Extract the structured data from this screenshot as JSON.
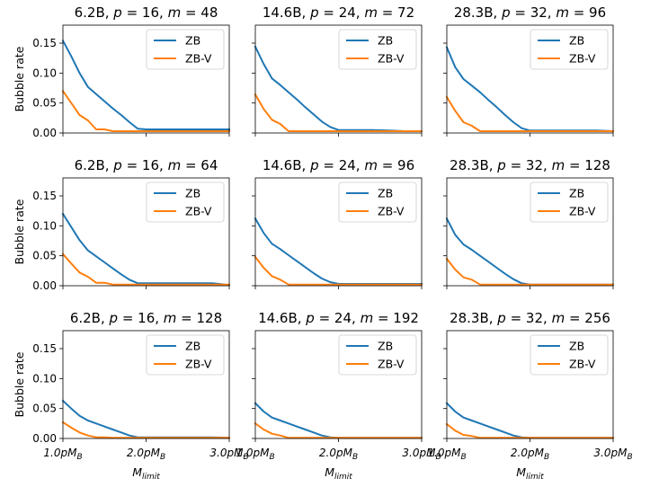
{
  "figure": {
    "ylabel": "Bubble rate",
    "xlabel_main": "M",
    "xlabel_sub": "limit",
    "xtick_labels": [
      {
        "main": "1.0pM",
        "sub": "B"
      },
      {
        "main": "2.0pM",
        "sub": "B"
      },
      {
        "main": "3.0pM",
        "sub": "B"
      }
    ],
    "ytick_labels": [
      "0.00",
      "0.05",
      "0.10",
      "0.15"
    ]
  },
  "colors": {
    "ZB": "#1f77b4",
    "ZB-V": "#ff7f0e"
  },
  "chart_data": [
    {
      "type": "line",
      "title": "6.2B, p = 16, m = 48",
      "title_parts": {
        "size": "6.2B",
        "p": "16",
        "m": "48"
      },
      "x": [
        1.0,
        1.1,
        1.2,
        1.3,
        1.4,
        1.5,
        1.6,
        1.7,
        1.8,
        1.9,
        2.0,
        2.2,
        2.4,
        2.6,
        2.8,
        3.0
      ],
      "xlim": [
        1.0,
        3.0
      ],
      "ylim": [
        0.0,
        0.18
      ],
      "legend": "upper right",
      "series": [
        {
          "name": "ZB",
          "values": [
            0.154,
            0.128,
            0.1,
            0.077,
            0.065,
            0.053,
            0.041,
            0.03,
            0.018,
            0.007,
            0.006,
            0.006,
            0.006,
            0.006,
            0.006,
            0.006
          ]
        },
        {
          "name": "ZB-V",
          "values": [
            0.07,
            0.05,
            0.03,
            0.021,
            0.006,
            0.006,
            0.003,
            0.003,
            0.003,
            0.003,
            0.003,
            0.003,
            0.003,
            0.003,
            0.003,
            0.003
          ]
        }
      ]
    },
    {
      "type": "line",
      "title": "14.6B, p = 24, m = 72",
      "title_parts": {
        "size": "14.6B",
        "p": "24",
        "m": "72"
      },
      "x": [
        1.0,
        1.1,
        1.2,
        1.3,
        1.4,
        1.5,
        1.6,
        1.7,
        1.8,
        1.9,
        2.0,
        2.2,
        2.4,
        2.6,
        2.8,
        3.0
      ],
      "xlim": [
        1.0,
        3.0
      ],
      "ylim": [
        0.0,
        0.18
      ],
      "legend": "upper right",
      "series": [
        {
          "name": "ZB",
          "values": [
            0.144,
            0.115,
            0.091,
            0.08,
            0.068,
            0.056,
            0.043,
            0.031,
            0.019,
            0.01,
            0.005,
            0.005,
            0.005,
            0.004,
            0.003,
            0.003
          ]
        },
        {
          "name": "ZB-V",
          "values": [
            0.064,
            0.04,
            0.022,
            0.015,
            0.003,
            0.003,
            0.003,
            0.003,
            0.003,
            0.003,
            0.003,
            0.003,
            0.003,
            0.003,
            0.003,
            0.003
          ]
        }
      ]
    },
    {
      "type": "line",
      "title": "28.3B, p = 32, m = 96",
      "title_parts": {
        "size": "28.3B",
        "p": "32",
        "m": "96"
      },
      "x": [
        1.0,
        1.1,
        1.2,
        1.3,
        1.4,
        1.5,
        1.6,
        1.7,
        1.8,
        1.9,
        2.0,
        2.2,
        2.4,
        2.6,
        2.8,
        3.0
      ],
      "xlim": [
        1.0,
        3.0
      ],
      "ylim": [
        0.0,
        0.18
      ],
      "legend": "upper right",
      "series": [
        {
          "name": "ZB",
          "values": [
            0.143,
            0.11,
            0.09,
            0.079,
            0.068,
            0.055,
            0.043,
            0.03,
            0.018,
            0.008,
            0.004,
            0.004,
            0.004,
            0.004,
            0.004,
            0.003
          ]
        },
        {
          "name": "ZB-V",
          "values": [
            0.06,
            0.037,
            0.018,
            0.012,
            0.003,
            0.003,
            0.003,
            0.003,
            0.003,
            0.003,
            0.003,
            0.003,
            0.003,
            0.003,
            0.003,
            0.003
          ]
        }
      ]
    },
    {
      "type": "line",
      "title": "6.2B, p = 16, m = 64",
      "title_parts": {
        "size": "6.2B",
        "p": "16",
        "m": "64"
      },
      "x": [
        1.0,
        1.1,
        1.2,
        1.3,
        1.4,
        1.5,
        1.6,
        1.7,
        1.8,
        1.9,
        2.0,
        2.2,
        2.4,
        2.6,
        2.8,
        3.0
      ],
      "xlim": [
        1.0,
        3.0
      ],
      "ylim": [
        0.0,
        0.18
      ],
      "legend": "upper right",
      "series": [
        {
          "name": "ZB",
          "values": [
            0.12,
            0.098,
            0.076,
            0.059,
            0.049,
            0.039,
            0.029,
            0.019,
            0.01,
            0.004,
            0.004,
            0.004,
            0.004,
            0.004,
            0.004,
            0.001
          ]
        },
        {
          "name": "ZB-V",
          "values": [
            0.053,
            0.037,
            0.022,
            0.015,
            0.005,
            0.005,
            0.002,
            0.002,
            0.002,
            0.002,
            0.002,
            0.002,
            0.002,
            0.002,
            0.002,
            0.002
          ]
        }
      ]
    },
    {
      "type": "line",
      "title": "14.6B, p = 24, m = 96",
      "title_parts": {
        "size": "14.6B",
        "p": "24",
        "m": "96"
      },
      "x": [
        1.0,
        1.1,
        1.2,
        1.3,
        1.4,
        1.5,
        1.6,
        1.7,
        1.8,
        1.9,
        2.0,
        2.2,
        2.4,
        2.6,
        2.8,
        3.0
      ],
      "xlim": [
        1.0,
        3.0
      ],
      "ylim": [
        0.0,
        0.18
      ],
      "legend": "upper right",
      "series": [
        {
          "name": "ZB",
          "values": [
            0.112,
            0.088,
            0.07,
            0.061,
            0.051,
            0.041,
            0.031,
            0.021,
            0.012,
            0.006,
            0.003,
            0.003,
            0.003,
            0.003,
            0.003,
            0.003
          ]
        },
        {
          "name": "ZB-V",
          "values": [
            0.048,
            0.03,
            0.016,
            0.01,
            0.002,
            0.002,
            0.002,
            0.002,
            0.002,
            0.002,
            0.002,
            0.002,
            0.002,
            0.002,
            0.002,
            0.002
          ]
        }
      ]
    },
    {
      "type": "line",
      "title": "28.3B, p = 32, m = 128",
      "title_parts": {
        "size": "28.3B",
        "p": "32",
        "m": "128"
      },
      "x": [
        1.0,
        1.1,
        1.2,
        1.3,
        1.4,
        1.5,
        1.6,
        1.7,
        1.8,
        1.9,
        2.0,
        2.2,
        2.4,
        2.6,
        2.8,
        3.0
      ],
      "xlim": [
        1.0,
        3.0
      ],
      "ylim": [
        0.0,
        0.18
      ],
      "legend": "upper right",
      "series": [
        {
          "name": "ZB",
          "values": [
            0.112,
            0.085,
            0.069,
            0.06,
            0.05,
            0.04,
            0.03,
            0.02,
            0.011,
            0.004,
            0.002,
            0.002,
            0.002,
            0.002,
            0.002,
            0.002
          ]
        },
        {
          "name": "ZB-V",
          "values": [
            0.045,
            0.027,
            0.014,
            0.01,
            0.002,
            0.002,
            0.002,
            0.002,
            0.002,
            0.002,
            0.002,
            0.002,
            0.002,
            0.002,
            0.002,
            0.002
          ]
        }
      ]
    },
    {
      "type": "line",
      "title": "6.2B, p = 16, m = 128",
      "title_parts": {
        "size": "6.2B",
        "p": "16",
        "m": "128"
      },
      "x": [
        1.0,
        1.1,
        1.2,
        1.3,
        1.4,
        1.5,
        1.6,
        1.7,
        1.8,
        1.9,
        2.0,
        2.2,
        2.4,
        2.6,
        2.8,
        3.0
      ],
      "xlim": [
        1.0,
        3.0
      ],
      "ylim": [
        0.0,
        0.18
      ],
      "legend": "upper right",
      "series": [
        {
          "name": "ZB",
          "values": [
            0.063,
            0.05,
            0.038,
            0.03,
            0.025,
            0.02,
            0.015,
            0.01,
            0.005,
            0.002,
            0.002,
            0.002,
            0.002,
            0.002,
            0.002,
            0.001
          ]
        },
        {
          "name": "ZB-V",
          "values": [
            0.027,
            0.018,
            0.01,
            0.005,
            0.002,
            0.002,
            0.001,
            0.001,
            0.001,
            0.001,
            0.001,
            0.001,
            0.001,
            0.001,
            0.001,
            0.001
          ]
        }
      ]
    },
    {
      "type": "line",
      "title": "14.6B, p = 24, m = 192",
      "title_parts": {
        "size": "14.6B",
        "p": "24",
        "m": "192"
      },
      "x": [
        1.0,
        1.1,
        1.2,
        1.3,
        1.4,
        1.5,
        1.6,
        1.7,
        1.8,
        1.9,
        2.0,
        2.2,
        2.4,
        2.6,
        2.8,
        3.0
      ],
      "xlim": [
        1.0,
        3.0
      ],
      "ylim": [
        0.0,
        0.18
      ],
      "legend": "upper right",
      "series": [
        {
          "name": "ZB",
          "values": [
            0.059,
            0.045,
            0.035,
            0.03,
            0.025,
            0.02,
            0.015,
            0.01,
            0.005,
            0.002,
            0.001,
            0.001,
            0.001,
            0.001,
            0.001,
            0.001
          ]
        },
        {
          "name": "ZB-V",
          "values": [
            0.025,
            0.015,
            0.008,
            0.005,
            0.001,
            0.001,
            0.001,
            0.001,
            0.001,
            0.001,
            0.001,
            0.001,
            0.001,
            0.001,
            0.001,
            0.001
          ]
        }
      ]
    },
    {
      "type": "line",
      "title": "28.3B, p = 32, m = 256",
      "title_parts": {
        "size": "28.3B",
        "p": "32",
        "m": "256"
      },
      "x": [
        1.0,
        1.1,
        1.2,
        1.3,
        1.4,
        1.5,
        1.6,
        1.7,
        1.8,
        1.9,
        2.0,
        2.2,
        2.4,
        2.6,
        2.8,
        3.0
      ],
      "xlim": [
        1.0,
        3.0
      ],
      "ylim": [
        0.0,
        0.18
      ],
      "legend": "upper right",
      "series": [
        {
          "name": "ZB",
          "values": [
            0.059,
            0.045,
            0.035,
            0.03,
            0.025,
            0.02,
            0.015,
            0.01,
            0.005,
            0.002,
            0.001,
            0.001,
            0.001,
            0.001,
            0.001,
            0.001
          ]
        },
        {
          "name": "ZB-V",
          "values": [
            0.024,
            0.013,
            0.006,
            0.004,
            0.001,
            0.001,
            0.001,
            0.001,
            0.001,
            0.001,
            0.001,
            0.001,
            0.001,
            0.001,
            0.001,
            0.001
          ]
        }
      ]
    }
  ]
}
